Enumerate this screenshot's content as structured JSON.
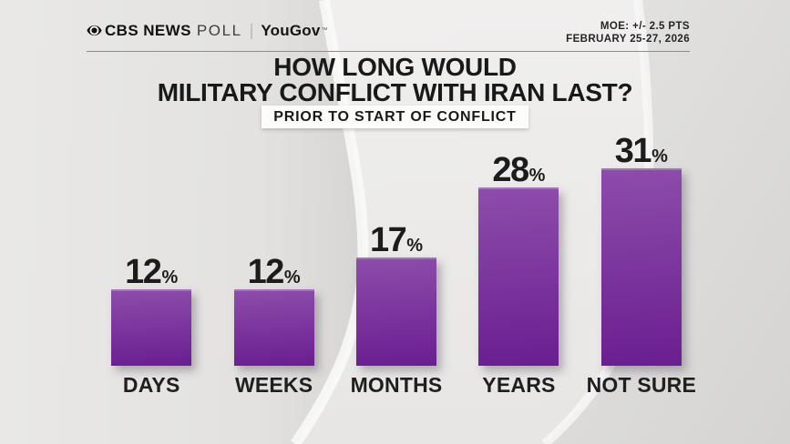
{
  "header": {
    "brand_bold": "CBS NEWS",
    "brand_light": "POLL",
    "separator": "|",
    "partner": "YouGov",
    "partner_mark": "™",
    "moe_line1": "MOE: +/- 2.5 PTS",
    "moe_line2": "FEBRUARY 25-27, 2026"
  },
  "title": {
    "line1": "HOW LONG WOULD",
    "line2": "MILITARY CONFLICT WITH IRAN LAST?"
  },
  "subtitle": {
    "label": "PRIOR TO START OF CONFLICT"
  },
  "chart_data": {
    "type": "bar",
    "title": "HOW LONG WOULD MILITARY CONFLICT WITH IRAN LAST?",
    "subtitle": "PRIOR TO START OF CONFLICT",
    "categories": [
      "DAYS",
      "WEEKS",
      "MONTHS",
      "YEARS",
      "NOT SURE"
    ],
    "values": [
      12,
      12,
      17,
      28,
      31
    ],
    "value_labels": [
      "12%",
      "12%",
      "17%",
      "28%",
      "31%"
    ],
    "unit": "%",
    "ylim": [
      0,
      35
    ],
    "grid": false,
    "legend": false,
    "orientation": "vertical",
    "bar_color_top": "#8d4dab",
    "bar_color_bottom": "#6a1e90"
  },
  "colors": {
    "background": "#eae9e8",
    "text_dark": "#1c1c1c",
    "bar_top": "#8d4dab",
    "bar_bottom": "#6a1e90",
    "subtitle_bg": "#fcfcfb",
    "rule": "#8e8d8b"
  }
}
